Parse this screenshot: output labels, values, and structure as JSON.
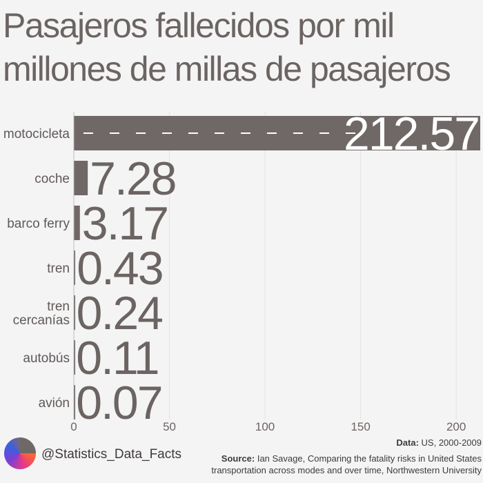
{
  "title": "Pasajeros fallecidos por mil\nmillones de millas de pasajeros",
  "footer": {
    "handle": "@Statistics_Data_Facts",
    "data_label": "Data:",
    "data_text": "US, 2000-2009",
    "source_label": "Source:",
    "source_text": "Ian Savage, Comparing the fatality risks in United States transportation across modes and over time, Northwestern University"
  },
  "colors": {
    "bar": "#6f6866",
    "grid": "#e2e2e2",
    "background": "#f4f4f4"
  },
  "chart_data": {
    "type": "bar",
    "orientation": "horizontal",
    "title": "Pasajeros fallecidos por mil millones de millas de pasajeros",
    "categories": [
      "motocicleta",
      "coche",
      "barco ferry",
      "tren",
      "tren cercanías",
      "autobús",
      "avión"
    ],
    "category_lines": [
      [
        "motocicleta"
      ],
      [
        "coche"
      ],
      [
        "barco ferry"
      ],
      [
        "tren"
      ],
      [
        "tren",
        "cercanías"
      ],
      [
        "autobús"
      ],
      [
        "avión"
      ]
    ],
    "values": [
      212.57,
      7.28,
      3.17,
      0.43,
      0.24,
      0.11,
      0.07
    ],
    "value_labels": [
      "212.57",
      "7.28",
      "3.17",
      "0.43",
      "0.24",
      "0.11",
      "0.07"
    ],
    "xlim": [
      0,
      212.57
    ],
    "xticks": [
      0,
      50,
      100,
      150,
      200
    ],
    "xlabel": "",
    "ylabel": "",
    "grid": true
  }
}
